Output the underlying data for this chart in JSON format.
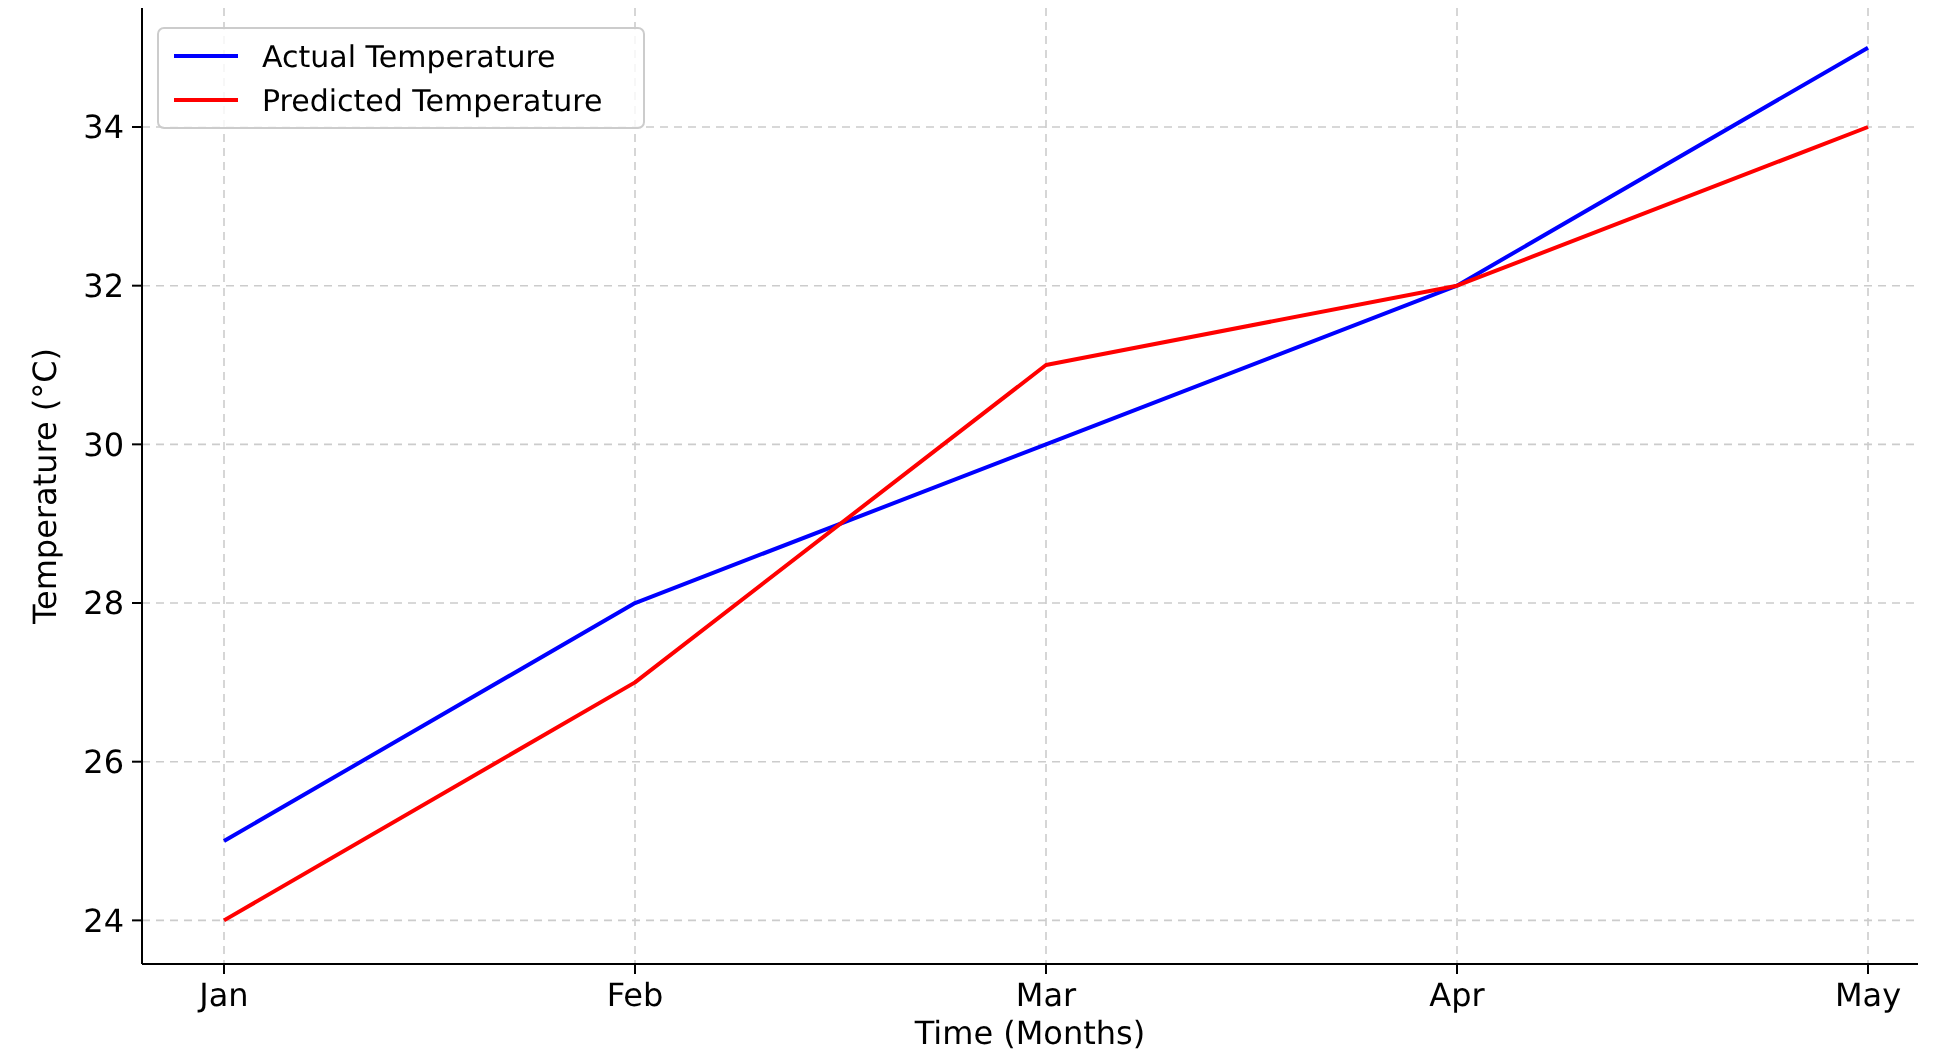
{
  "chart_data": {
    "type": "line",
    "xlabel": "Time (Months)",
    "ylabel": "Temperature (°C)",
    "categories": [
      "Jan",
      "Feb",
      "Mar",
      "Apr",
      "May"
    ],
    "series": [
      {
        "name": "Actual Temperature",
        "color": "#0000ff",
        "values": [
          25,
          28,
          30,
          32,
          35
        ]
      },
      {
        "name": "Predicted Temperature",
        "color": "#ff0000",
        "values": [
          24,
          27,
          31,
          32,
          34
        ]
      }
    ],
    "ylim": [
      23.45,
      35.5
    ],
    "yticks": [
      24,
      26,
      28,
      30,
      32,
      34
    ],
    "grid": true,
    "legend": "top left",
    "line_style": "solid"
  }
}
